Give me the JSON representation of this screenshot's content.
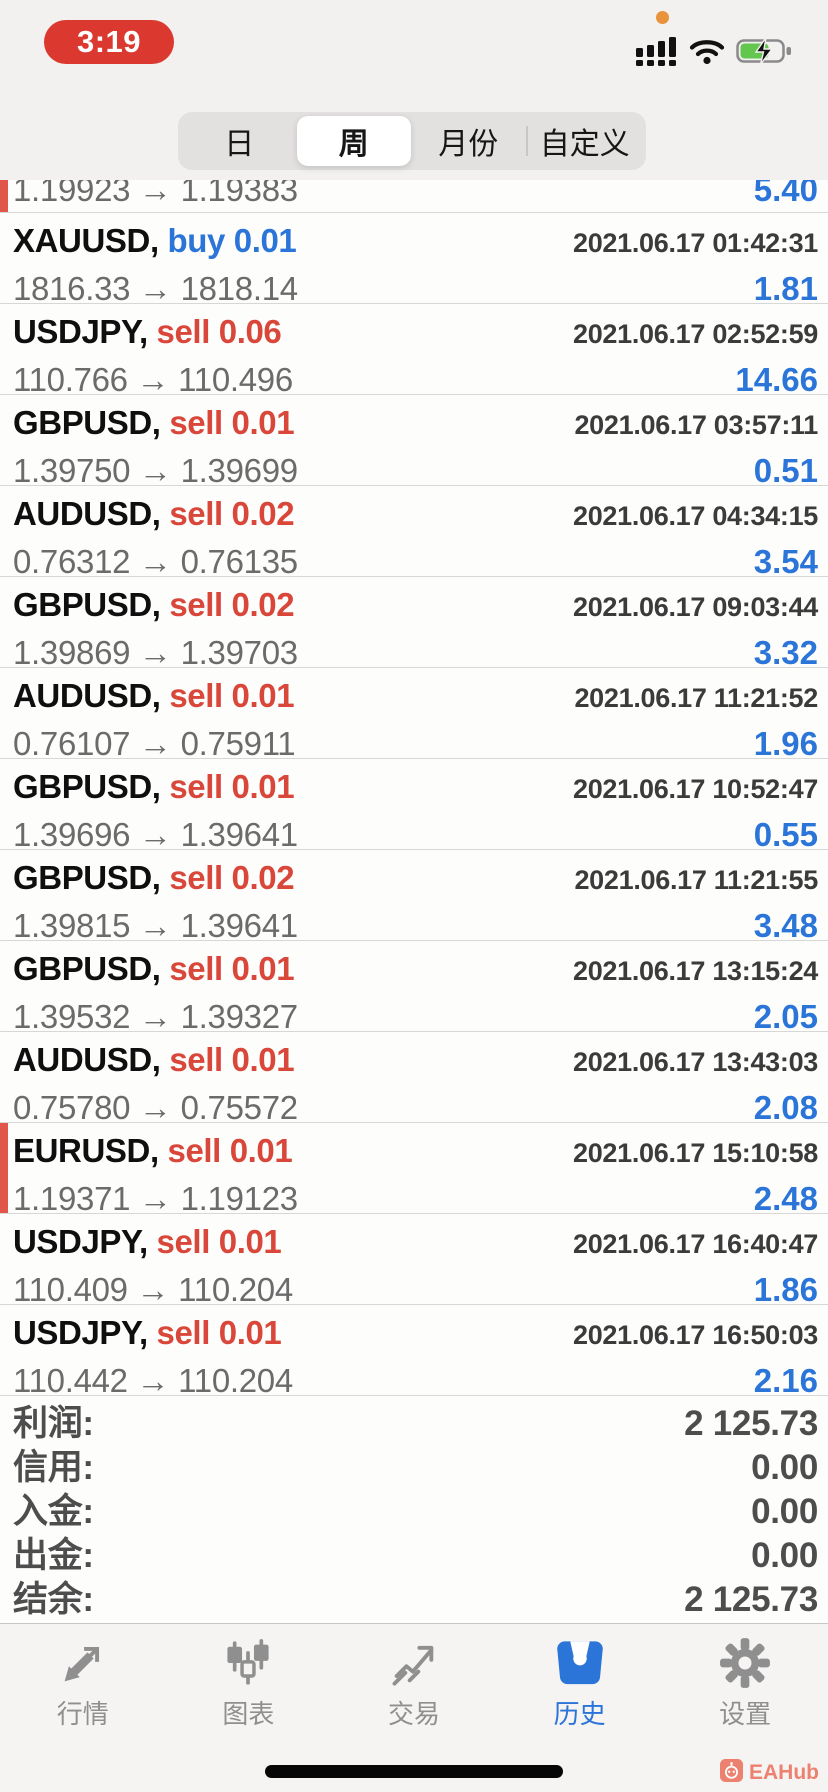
{
  "status_bar": {
    "time": "3:19"
  },
  "filter_tabs": {
    "segments": [
      {
        "label": "日",
        "selected": false,
        "divider_before": false
      },
      {
        "label": "周",
        "selected": true,
        "divider_before": false
      },
      {
        "label": "月份",
        "selected": false,
        "divider_before": false
      },
      {
        "label": "自定义",
        "selected": false,
        "divider_before": true
      }
    ]
  },
  "price_arrow": "→",
  "trades": [
    {
      "symbol": "",
      "side": "",
      "lot": "",
      "open": "1.19923",
      "close": "1.19383",
      "time": "",
      "profit": "5.40",
      "partial": true,
      "flagged": true
    },
    {
      "symbol": "XAUUSD",
      "side": "buy",
      "lot": "0.01",
      "open": "1816.33",
      "close": "1818.14",
      "time": "2021.06.17 01:42:31",
      "profit": "1.81",
      "partial": false,
      "flagged": false
    },
    {
      "symbol": "USDJPY",
      "side": "sell",
      "lot": "0.06",
      "open": "110.766",
      "close": "110.496",
      "time": "2021.06.17 02:52:59",
      "profit": "14.66",
      "partial": false,
      "flagged": false
    },
    {
      "symbol": "GBPUSD",
      "side": "sell",
      "lot": "0.01",
      "open": "1.39750",
      "close": "1.39699",
      "time": "2021.06.17 03:57:11",
      "profit": "0.51",
      "partial": false,
      "flagged": false
    },
    {
      "symbol": "AUDUSD",
      "side": "sell",
      "lot": "0.02",
      "open": "0.76312",
      "close": "0.76135",
      "time": "2021.06.17 04:34:15",
      "profit": "3.54",
      "partial": false,
      "flagged": false
    },
    {
      "symbol": "GBPUSD",
      "side": "sell",
      "lot": "0.02",
      "open": "1.39869",
      "close": "1.39703",
      "time": "2021.06.17 09:03:44",
      "profit": "3.32",
      "partial": false,
      "flagged": false
    },
    {
      "symbol": "AUDUSD",
      "side": "sell",
      "lot": "0.01",
      "open": "0.76107",
      "close": "0.75911",
      "time": "2021.06.17 11:21:52",
      "profit": "1.96",
      "partial": false,
      "flagged": false
    },
    {
      "symbol": "GBPUSD",
      "side": "sell",
      "lot": "0.01",
      "open": "1.39696",
      "close": "1.39641",
      "time": "2021.06.17 10:52:47",
      "profit": "0.55",
      "partial": false,
      "flagged": false
    },
    {
      "symbol": "GBPUSD",
      "side": "sell",
      "lot": "0.02",
      "open": "1.39815",
      "close": "1.39641",
      "time": "2021.06.17 11:21:55",
      "profit": "3.48",
      "partial": false,
      "flagged": false
    },
    {
      "symbol": "GBPUSD",
      "side": "sell",
      "lot": "0.01",
      "open": "1.39532",
      "close": "1.39327",
      "time": "2021.06.17 13:15:24",
      "profit": "2.05",
      "partial": false,
      "flagged": false
    },
    {
      "symbol": "AUDUSD",
      "side": "sell",
      "lot": "0.01",
      "open": "0.75780",
      "close": "0.75572",
      "time": "2021.06.17 13:43:03",
      "profit": "2.08",
      "partial": false,
      "flagged": false
    },
    {
      "symbol": "EURUSD",
      "side": "sell",
      "lot": "0.01",
      "open": "1.19371",
      "close": "1.19123",
      "time": "2021.06.17 15:10:58",
      "profit": "2.48",
      "partial": false,
      "flagged": true
    },
    {
      "symbol": "USDJPY",
      "side": "sell",
      "lot": "0.01",
      "open": "110.409",
      "close": "110.204",
      "time": "2021.06.17 16:40:47",
      "profit": "1.86",
      "partial": false,
      "flagged": false
    },
    {
      "symbol": "USDJPY",
      "side": "sell",
      "lot": "0.01",
      "open": "110.442",
      "close": "110.204",
      "time": "2021.06.17 16:50:03",
      "profit": "2.16",
      "partial": false,
      "flagged": false
    }
  ],
  "summary": [
    {
      "label": "利润:",
      "value": "2 125.73"
    },
    {
      "label": "信用:",
      "value": "0.00"
    },
    {
      "label": "入金:",
      "value": "0.00"
    },
    {
      "label": "出金:",
      "value": "0.00"
    },
    {
      "label": "结余:",
      "value": "2 125.73"
    }
  ],
  "tab_bar": [
    {
      "label": "行情",
      "icon": "quotes",
      "active": false
    },
    {
      "label": "图表",
      "icon": "charts",
      "active": false
    },
    {
      "label": "交易",
      "icon": "trade",
      "active": false
    },
    {
      "label": "历史",
      "icon": "history",
      "active": true
    },
    {
      "label": "设置",
      "icon": "settings",
      "active": false
    }
  ],
  "watermark": {
    "label": "EAHub"
  },
  "colors": {
    "buy": "#2b74d8",
    "sell": "#d8473a",
    "profit": "#2b74d8",
    "record_pill": "#db392f",
    "flag_bar": "#e0564a",
    "tab_active": "#2b74d8",
    "battery_fill": "#63c74f",
    "watermark": "#ed8170"
  }
}
